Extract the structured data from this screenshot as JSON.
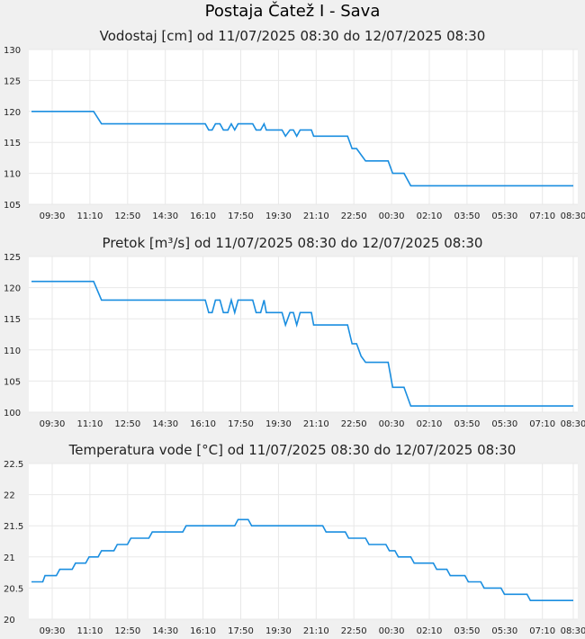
{
  "page": {
    "title": "Postaja Čatež I - Sava"
  },
  "colors": {
    "background": "#f0f0f0",
    "plot_background": "#ffffff",
    "series": "#1a8ee0",
    "grid": "#e8e8e8"
  },
  "chart_data": [
    {
      "type": "line",
      "title": "Vodostaj [cm] od 11/07/2025 08:30 do 12/07/2025 08:30",
      "xlabel": "",
      "ylabel": "",
      "x_ticks": [
        "09:30",
        "11:10",
        "12:50",
        "14:30",
        "16:10",
        "17:50",
        "19:30",
        "21:10",
        "22:50",
        "00:30",
        "02:10",
        "03:50",
        "05:30",
        "07:10",
        "08:30"
      ],
      "y_ticks": [
        "105",
        "110",
        "115",
        "120",
        "125",
        "130"
      ],
      "ylim": [
        105,
        130
      ],
      "x_range_hours": [
        0,
        24
      ],
      "grid": true,
      "series": [
        {
          "values": [
            [
              0,
              120
            ],
            [
              2.75,
              120
            ],
            [
              3.1,
              118
            ],
            [
              7.7,
              118
            ],
            [
              7.85,
              117
            ],
            [
              8.0,
              117
            ],
            [
              8.15,
              118
            ],
            [
              8.35,
              118
            ],
            [
              8.5,
              117
            ],
            [
              8.7,
              117
            ],
            [
              8.85,
              118
            ],
            [
              9.0,
              117
            ],
            [
              9.15,
              118
            ],
            [
              9.8,
              118
            ],
            [
              9.95,
              117
            ],
            [
              10.15,
              117
            ],
            [
              10.3,
              118
            ],
            [
              10.4,
              117
            ],
            [
              11.1,
              117
            ],
            [
              11.25,
              116
            ],
            [
              11.45,
              117
            ],
            [
              11.6,
              117
            ],
            [
              11.75,
              116
            ],
            [
              11.9,
              117
            ],
            [
              12.4,
              117
            ],
            [
              12.5,
              116
            ],
            [
              14.0,
              116
            ],
            [
              14.2,
              114
            ],
            [
              14.4,
              114
            ],
            [
              14.6,
              113
            ],
            [
              14.8,
              112
            ],
            [
              15.8,
              112
            ],
            [
              16.0,
              110
            ],
            [
              16.5,
              110
            ],
            [
              16.8,
              108
            ],
            [
              24,
              108
            ]
          ]
        }
      ]
    },
    {
      "type": "line",
      "title": "Pretok [m³/s] od 11/07/2025 08:30 do 12/07/2025 08:30",
      "xlabel": "",
      "ylabel": "",
      "x_ticks": [
        "09:30",
        "11:10",
        "12:50",
        "14:30",
        "16:10",
        "17:50",
        "19:30",
        "21:10",
        "22:50",
        "00:30",
        "02:10",
        "03:50",
        "05:30",
        "07:10",
        "08:30"
      ],
      "y_ticks": [
        "100",
        "105",
        "110",
        "115",
        "120",
        "125"
      ],
      "ylim": [
        100,
        125
      ],
      "x_range_hours": [
        0,
        24
      ],
      "grid": true,
      "series": [
        {
          "values": [
            [
              0,
              121
            ],
            [
              2.75,
              121
            ],
            [
              3.1,
              118
            ],
            [
              7.7,
              118
            ],
            [
              7.85,
              116
            ],
            [
              8.0,
              116
            ],
            [
              8.15,
              118
            ],
            [
              8.35,
              118
            ],
            [
              8.5,
              116
            ],
            [
              8.7,
              116
            ],
            [
              8.85,
              118
            ],
            [
              9.0,
              116
            ],
            [
              9.15,
              118
            ],
            [
              9.8,
              118
            ],
            [
              9.95,
              116
            ],
            [
              10.15,
              116
            ],
            [
              10.3,
              118
            ],
            [
              10.4,
              116
            ],
            [
              11.1,
              116
            ],
            [
              11.25,
              114
            ],
            [
              11.45,
              116
            ],
            [
              11.6,
              116
            ],
            [
              11.75,
              114
            ],
            [
              11.9,
              116
            ],
            [
              12.4,
              116
            ],
            [
              12.5,
              114
            ],
            [
              14.0,
              114
            ],
            [
              14.2,
              111
            ],
            [
              14.4,
              111
            ],
            [
              14.6,
              109
            ],
            [
              14.8,
              108
            ],
            [
              15.8,
              108
            ],
            [
              16.0,
              104
            ],
            [
              16.5,
              104
            ],
            [
              16.8,
              101
            ],
            [
              24,
              101
            ]
          ]
        }
      ]
    },
    {
      "type": "line",
      "title": "Temperatura vode [°C] od 11/07/2025 08:30 do 12/07/2025 08:30",
      "xlabel": "",
      "ylabel": "",
      "x_ticks": [
        "09:30",
        "11:10",
        "12:50",
        "14:30",
        "16:10",
        "17:50",
        "19:30",
        "21:10",
        "22:50",
        "00:30",
        "02:10",
        "03:50",
        "05:30",
        "07:10",
        "08:30"
      ],
      "y_ticks": [
        "20",
        "20.5",
        "21",
        "21.5",
        "22",
        "22.5"
      ],
      "ylim": [
        20,
        22.5
      ],
      "x_range_hours": [
        0,
        24
      ],
      "grid": true,
      "series": [
        {
          "values": [
            [
              0,
              20.6
            ],
            [
              0.5,
              20.6
            ],
            [
              0.6,
              20.7
            ],
            [
              1.1,
              20.7
            ],
            [
              1.25,
              20.8
            ],
            [
              1.8,
              20.8
            ],
            [
              1.95,
              20.9
            ],
            [
              2.4,
              20.9
            ],
            [
              2.55,
              21.0
            ],
            [
              2.95,
              21.0
            ],
            [
              3.1,
              21.1
            ],
            [
              3.65,
              21.1
            ],
            [
              3.8,
              21.2
            ],
            [
              4.25,
              21.2
            ],
            [
              4.4,
              21.3
            ],
            [
              5.2,
              21.3
            ],
            [
              5.35,
              21.4
            ],
            [
              6.7,
              21.4
            ],
            [
              6.85,
              21.5
            ],
            [
              9.0,
              21.5
            ],
            [
              9.15,
              21.6
            ],
            [
              9.6,
              21.6
            ],
            [
              9.75,
              21.5
            ],
            [
              12.9,
              21.5
            ],
            [
              13.05,
              21.4
            ],
            [
              13.9,
              21.4
            ],
            [
              14.05,
              21.3
            ],
            [
              14.8,
              21.3
            ],
            [
              14.95,
              21.2
            ],
            [
              15.7,
              21.2
            ],
            [
              15.85,
              21.1
            ],
            [
              16.1,
              21.1
            ],
            [
              16.25,
              21.0
            ],
            [
              16.8,
              21.0
            ],
            [
              16.95,
              20.9
            ],
            [
              17.8,
              20.9
            ],
            [
              17.95,
              20.8
            ],
            [
              18.4,
              20.8
            ],
            [
              18.55,
              20.7
            ],
            [
              19.2,
              20.7
            ],
            [
              19.35,
              20.6
            ],
            [
              19.9,
              20.6
            ],
            [
              20.05,
              20.5
            ],
            [
              20.8,
              20.5
            ],
            [
              20.95,
              20.4
            ],
            [
              21.95,
              20.4
            ],
            [
              22.1,
              20.3
            ],
            [
              24,
              20.3
            ]
          ]
        }
      ]
    }
  ]
}
